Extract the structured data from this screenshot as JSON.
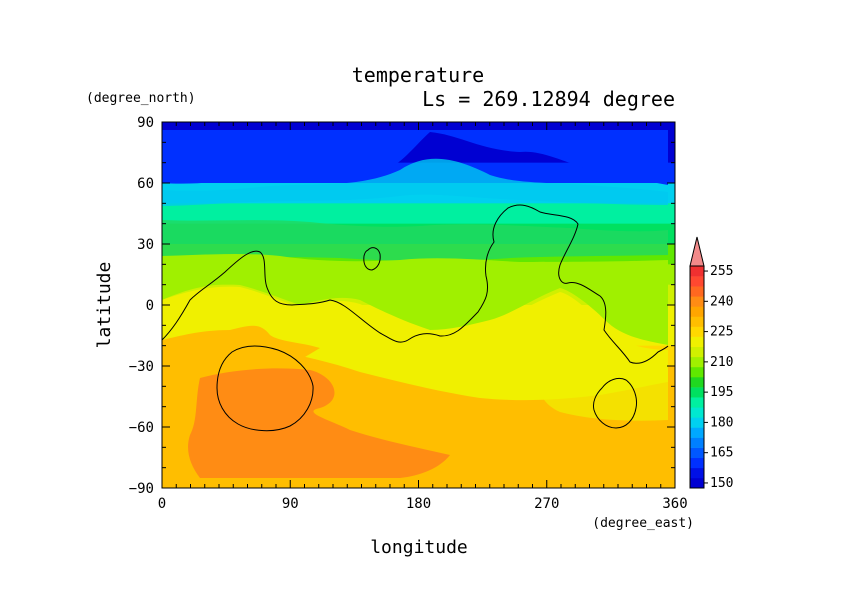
{
  "chart_data": {
    "type": "heatmap",
    "title": "temperature",
    "subtitle": "Ls = 269.12894 degree",
    "xlabel": "longitude",
    "ylabel": "latitude",
    "xunit": "(degree_east)",
    "yunit": "(degree_north)",
    "xlim": [
      0,
      360
    ],
    "ylim": [
      -90,
      90
    ],
    "x_ticks": [
      "0",
      "90",
      "180",
      "270",
      "360"
    ],
    "y_ticks": [
      "90",
      "60",
      "30",
      "0",
      "−30",
      "−60",
      "−90"
    ],
    "colorbar": {
      "levels": [
        150,
        155,
        160,
        165,
        170,
        175,
        180,
        185,
        190,
        195,
        200,
        205,
        210,
        215,
        220,
        225,
        230,
        235,
        240,
        245,
        250,
        255
      ],
      "labels": [
        "255",
        "240",
        "225",
        "210",
        "195",
        "180",
        "165",
        "150"
      ],
      "extend": "both"
    },
    "latitude_bands": [
      {
        "lat": 85,
        "value": 147
      },
      {
        "lat": 75,
        "value": 150
      },
      {
        "lat": 65,
        "value": 160
      },
      {
        "lat": 55,
        "value": 180
      },
      {
        "lat": 45,
        "value": 190
      },
      {
        "lat": 35,
        "value": 198
      },
      {
        "lat": 25,
        "value": 205
      },
      {
        "lat": 15,
        "value": 212
      },
      {
        "lat": 5,
        "value": 215
      },
      {
        "lat": -5,
        "value": 220
      },
      {
        "lat": -15,
        "value": 222
      },
      {
        "lat": -25,
        "value": 226
      },
      {
        "lat": -35,
        "value": 230
      },
      {
        "lat": -45,
        "value": 232
      },
      {
        "lat": -55,
        "value": 232
      },
      {
        "lat": -65,
        "value": 233
      },
      {
        "lat": -75,
        "value": 232
      },
      {
        "lat": -85,
        "value": 230
      }
    ]
  }
}
